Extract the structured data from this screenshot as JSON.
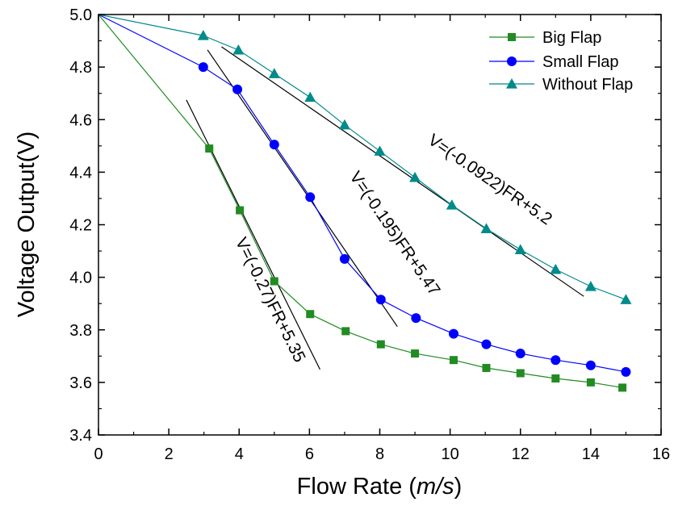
{
  "chart_data": {
    "type": "line",
    "xlabel": "Flow Rate (m/s)",
    "xlabel_parts": {
      "before": "Flow Rate (",
      "italic": "m/s",
      "after": ")"
    },
    "ylabel": "Voltage Output(V)",
    "xlim": [
      0,
      16
    ],
    "ylim": [
      3.4,
      5.0
    ],
    "x_ticks": [
      0,
      2,
      4,
      6,
      8,
      10,
      12,
      14,
      16
    ],
    "x_tick_labels": [
      "0",
      "2",
      "4",
      "6",
      "8",
      "10",
      "12",
      "14",
      "16"
    ],
    "y_ticks": [
      3.4,
      3.6,
      3.8,
      4.0,
      4.2,
      4.4,
      4.6,
      4.8,
      5.0
    ],
    "y_tick_labels": [
      "3.4",
      "3.6",
      "3.8",
      "4.0",
      "4.2",
      "4.4",
      "4.6",
      "4.8",
      "5.0"
    ],
    "grid": false,
    "legend_position": "top-right",
    "series": [
      {
        "name": "Big Flap",
        "color": "#228b22",
        "marker": "square",
        "x": [
          0,
          3.15,
          4.02,
          5.0,
          6.02,
          7.03,
          8.03,
          9.0,
          10.1,
          11.03,
          12.0,
          13.0,
          14.0,
          14.9
        ],
        "y": [
          5.0,
          4.49,
          4.255,
          3.985,
          3.86,
          3.795,
          3.745,
          3.71,
          3.685,
          3.655,
          3.635,
          3.615,
          3.6,
          3.58
        ]
      },
      {
        "name": "Small Flap",
        "color": "#0000ff",
        "marker": "circle",
        "x": [
          0,
          2.98,
          3.95,
          5.0,
          6.02,
          7.0,
          8.03,
          9.03,
          10.1,
          11.03,
          12.0,
          13.0,
          14.0,
          15.0
        ],
        "y": [
          5.0,
          4.8,
          4.715,
          4.505,
          4.305,
          4.07,
          3.915,
          3.845,
          3.785,
          3.745,
          3.71,
          3.685,
          3.665,
          3.64
        ]
      },
      {
        "name": "Without Flap",
        "color": "#008b8b",
        "marker": "triangle",
        "x": [
          0,
          2.98,
          3.98,
          5.0,
          6.02,
          7.0,
          8.0,
          9.0,
          10.05,
          11.03,
          12.0,
          13.0,
          14.0,
          15.0
        ],
        "y": [
          5.0,
          4.92,
          4.865,
          4.775,
          4.685,
          4.58,
          4.48,
          4.38,
          4.275,
          4.185,
          4.105,
          4.03,
          3.965,
          3.915
        ]
      }
    ],
    "fit_lines": [
      {
        "label": "V=(-0.27)FR+5.35",
        "slope": -0.27,
        "intercept": 5.35,
        "x_range": [
          2.5,
          6.3
        ],
        "label_x": 4.75,
        "label_y": 3.905
      },
      {
        "label": "V=(-0.195)FR+5.47",
        "slope": -0.195,
        "intercept": 5.47,
        "x_range": [
          3.1,
          8.5
        ],
        "label_x": 8.3,
        "label_y": 4.155
      },
      {
        "label": "V=(-0.0922)FR+5.2",
        "slope": -0.0922,
        "intercept": 5.2,
        "x_range": [
          3.5,
          13.8
        ],
        "label_x": 11.05,
        "label_y": 4.355
      }
    ]
  }
}
